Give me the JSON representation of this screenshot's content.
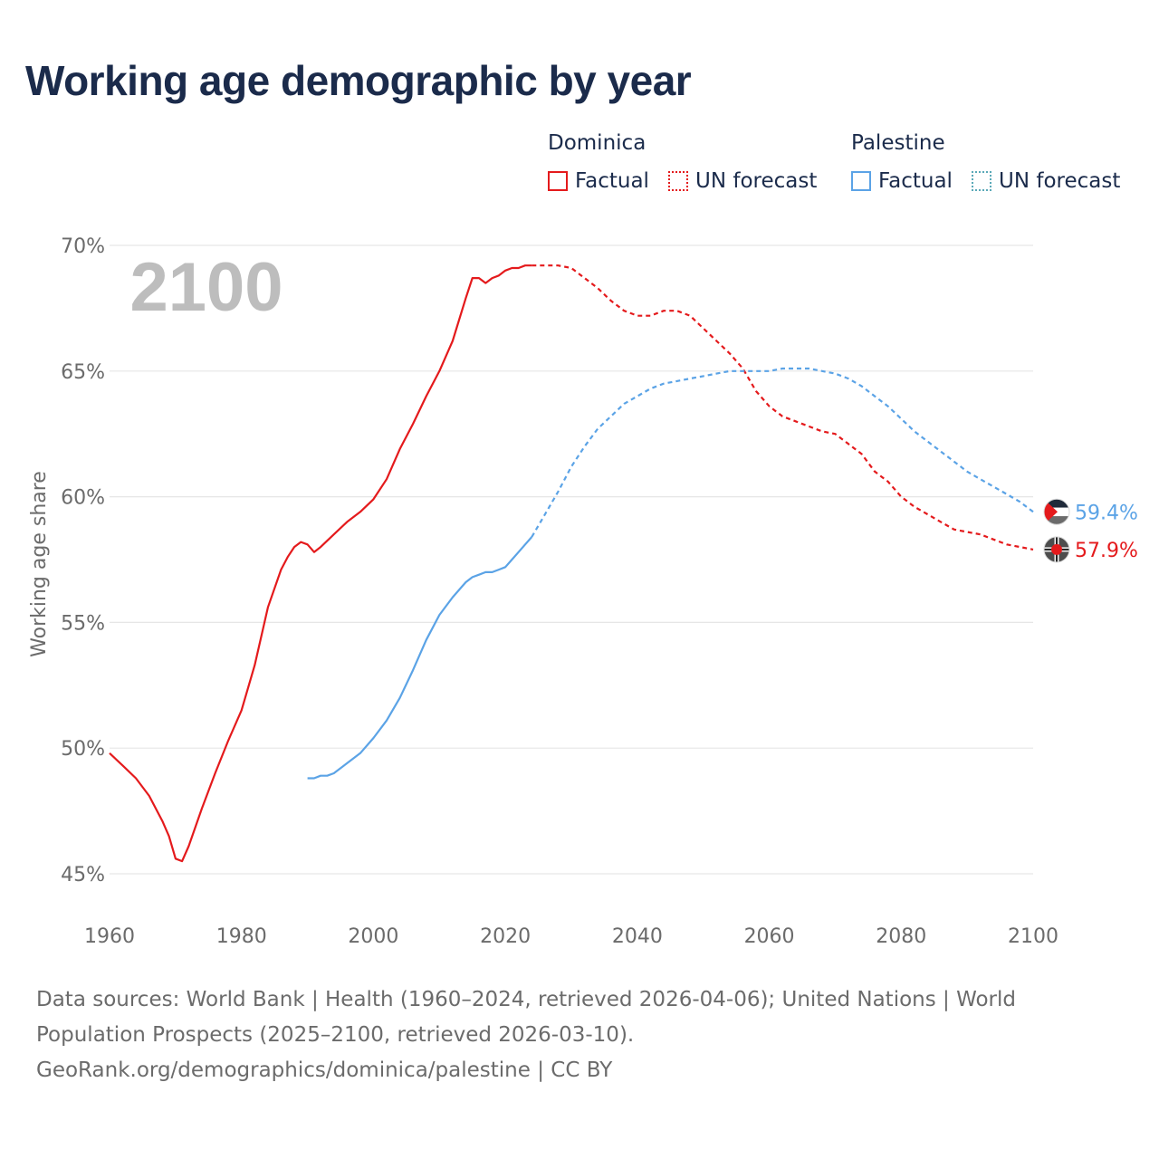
{
  "title": "Working age demographic by year",
  "legend": {
    "groups": [
      {
        "name": "Dominica",
        "color": "#e41a1c",
        "factual_label": "Factual",
        "forecast_label": "UN forecast"
      },
      {
        "name": "Palestine",
        "color": "#5ba3e6",
        "forecast_color": "#5aa9b8",
        "factual_label": "Factual",
        "forecast_label": "UN forecast"
      }
    ]
  },
  "footer": {
    "line1": "Data sources: World Bank | Health (1960–2024, retrieved 2026-04-06); United Nations | World",
    "line2": "Population Prospects (2025–2100, retrieved 2026-03-10).",
    "line3": "GeoRank.org/demographics/dominica/palestine | CC BY"
  },
  "chart_data": {
    "type": "line",
    "title": "Working age demographic by year",
    "ylabel": "Working age share",
    "xlabel": "",
    "year_watermark": "2100",
    "xlim": [
      1960,
      2100
    ],
    "ylim": [
      45,
      70
    ],
    "x_ticks": [
      1960,
      1980,
      2000,
      2020,
      2040,
      2060,
      2080,
      2100
    ],
    "y_ticks": [
      45,
      50,
      55,
      60,
      65,
      70
    ],
    "y_tick_labels": [
      "45%",
      "50%",
      "55%",
      "60%",
      "65%",
      "70%"
    ],
    "grid": true,
    "series": [
      {
        "name": "Dominica",
        "color": "#e41a1c",
        "end_label": "57.9%",
        "flag_icon": "dominica-flag-icon",
        "factual": {
          "x": [
            1960,
            1962,
            1964,
            1966,
            1968,
            1969,
            1970,
            1971,
            1972,
            1974,
            1976,
            1978,
            1980,
            1982,
            1984,
            1986,
            1987,
            1988,
            1989,
            1990,
            1991,
            1992,
            1994,
            1996,
            1998,
            2000,
            2002,
            2004,
            2006,
            2008,
            2010,
            2012,
            2014,
            2015,
            2016,
            2017,
            2018,
            2019,
            2020,
            2021,
            2022,
            2023,
            2024
          ],
          "values": [
            49.8,
            49.3,
            48.8,
            48.1,
            47.1,
            46.5,
            45.6,
            45.5,
            46.1,
            47.6,
            49.0,
            50.3,
            51.5,
            53.3,
            55.6,
            57.1,
            57.6,
            58.0,
            58.2,
            58.1,
            57.8,
            58.0,
            58.5,
            59.0,
            59.4,
            59.9,
            60.7,
            61.9,
            62.9,
            64.0,
            65.0,
            66.2,
            67.9,
            68.7,
            68.7,
            68.5,
            68.7,
            68.8,
            69.0,
            69.1,
            69.1,
            69.2,
            69.2
          ]
        },
        "forecast": {
          "x": [
            2024,
            2026,
            2028,
            2030,
            2032,
            2034,
            2036,
            2038,
            2040,
            2042,
            2044,
            2046,
            2048,
            2050,
            2052,
            2054,
            2056,
            2058,
            2060,
            2062,
            2064,
            2066,
            2068,
            2070,
            2072,
            2074,
            2076,
            2078,
            2080,
            2082,
            2084,
            2086,
            2088,
            2090,
            2092,
            2094,
            2096,
            2098,
            2100
          ],
          "values": [
            69.2,
            69.2,
            69.2,
            69.1,
            68.7,
            68.3,
            67.8,
            67.4,
            67.2,
            67.2,
            67.4,
            67.4,
            67.2,
            66.7,
            66.2,
            65.7,
            65.1,
            64.2,
            63.6,
            63.2,
            63.0,
            62.8,
            62.6,
            62.5,
            62.1,
            61.7,
            61.0,
            60.6,
            60.0,
            59.6,
            59.3,
            59.0,
            58.7,
            58.6,
            58.5,
            58.3,
            58.1,
            58.0,
            57.9
          ]
        }
      },
      {
        "name": "Palestine",
        "color": "#5ba3e6",
        "end_label": "59.4%",
        "flag_icon": "palestine-flag-icon",
        "factual": {
          "x": [
            1990,
            1991,
            1992,
            1993,
            1994,
            1996,
            1998,
            2000,
            2002,
            2004,
            2006,
            2008,
            2010,
            2012,
            2014,
            2015,
            2016,
            2017,
            2018,
            2019,
            2020,
            2021,
            2022,
            2023,
            2024
          ],
          "values": [
            48.8,
            48.8,
            48.9,
            48.9,
            49.0,
            49.4,
            49.8,
            50.4,
            51.1,
            52.0,
            53.1,
            54.3,
            55.3,
            56.0,
            56.6,
            56.8,
            56.9,
            57.0,
            57.0,
            57.1,
            57.2,
            57.5,
            57.8,
            58.1,
            58.4
          ]
        },
        "forecast": {
          "x": [
            2024,
            2026,
            2028,
            2030,
            2032,
            2034,
            2036,
            2038,
            2040,
            2042,
            2044,
            2046,
            2048,
            2050,
            2052,
            2054,
            2056,
            2058,
            2060,
            2062,
            2064,
            2066,
            2068,
            2070,
            2072,
            2074,
            2076,
            2078,
            2080,
            2082,
            2084,
            2086,
            2088,
            2090,
            2092,
            2094,
            2096,
            2098,
            2100
          ],
          "values": [
            58.4,
            59.3,
            60.2,
            61.2,
            62.0,
            62.7,
            63.2,
            63.7,
            64.0,
            64.3,
            64.5,
            64.6,
            64.7,
            64.8,
            64.9,
            65.0,
            65.0,
            65.0,
            65.0,
            65.1,
            65.1,
            65.1,
            65.0,
            64.9,
            64.7,
            64.4,
            64.0,
            63.6,
            63.1,
            62.6,
            62.2,
            61.8,
            61.4,
            61.0,
            60.7,
            60.4,
            60.1,
            59.8,
            59.4
          ]
        }
      }
    ]
  }
}
